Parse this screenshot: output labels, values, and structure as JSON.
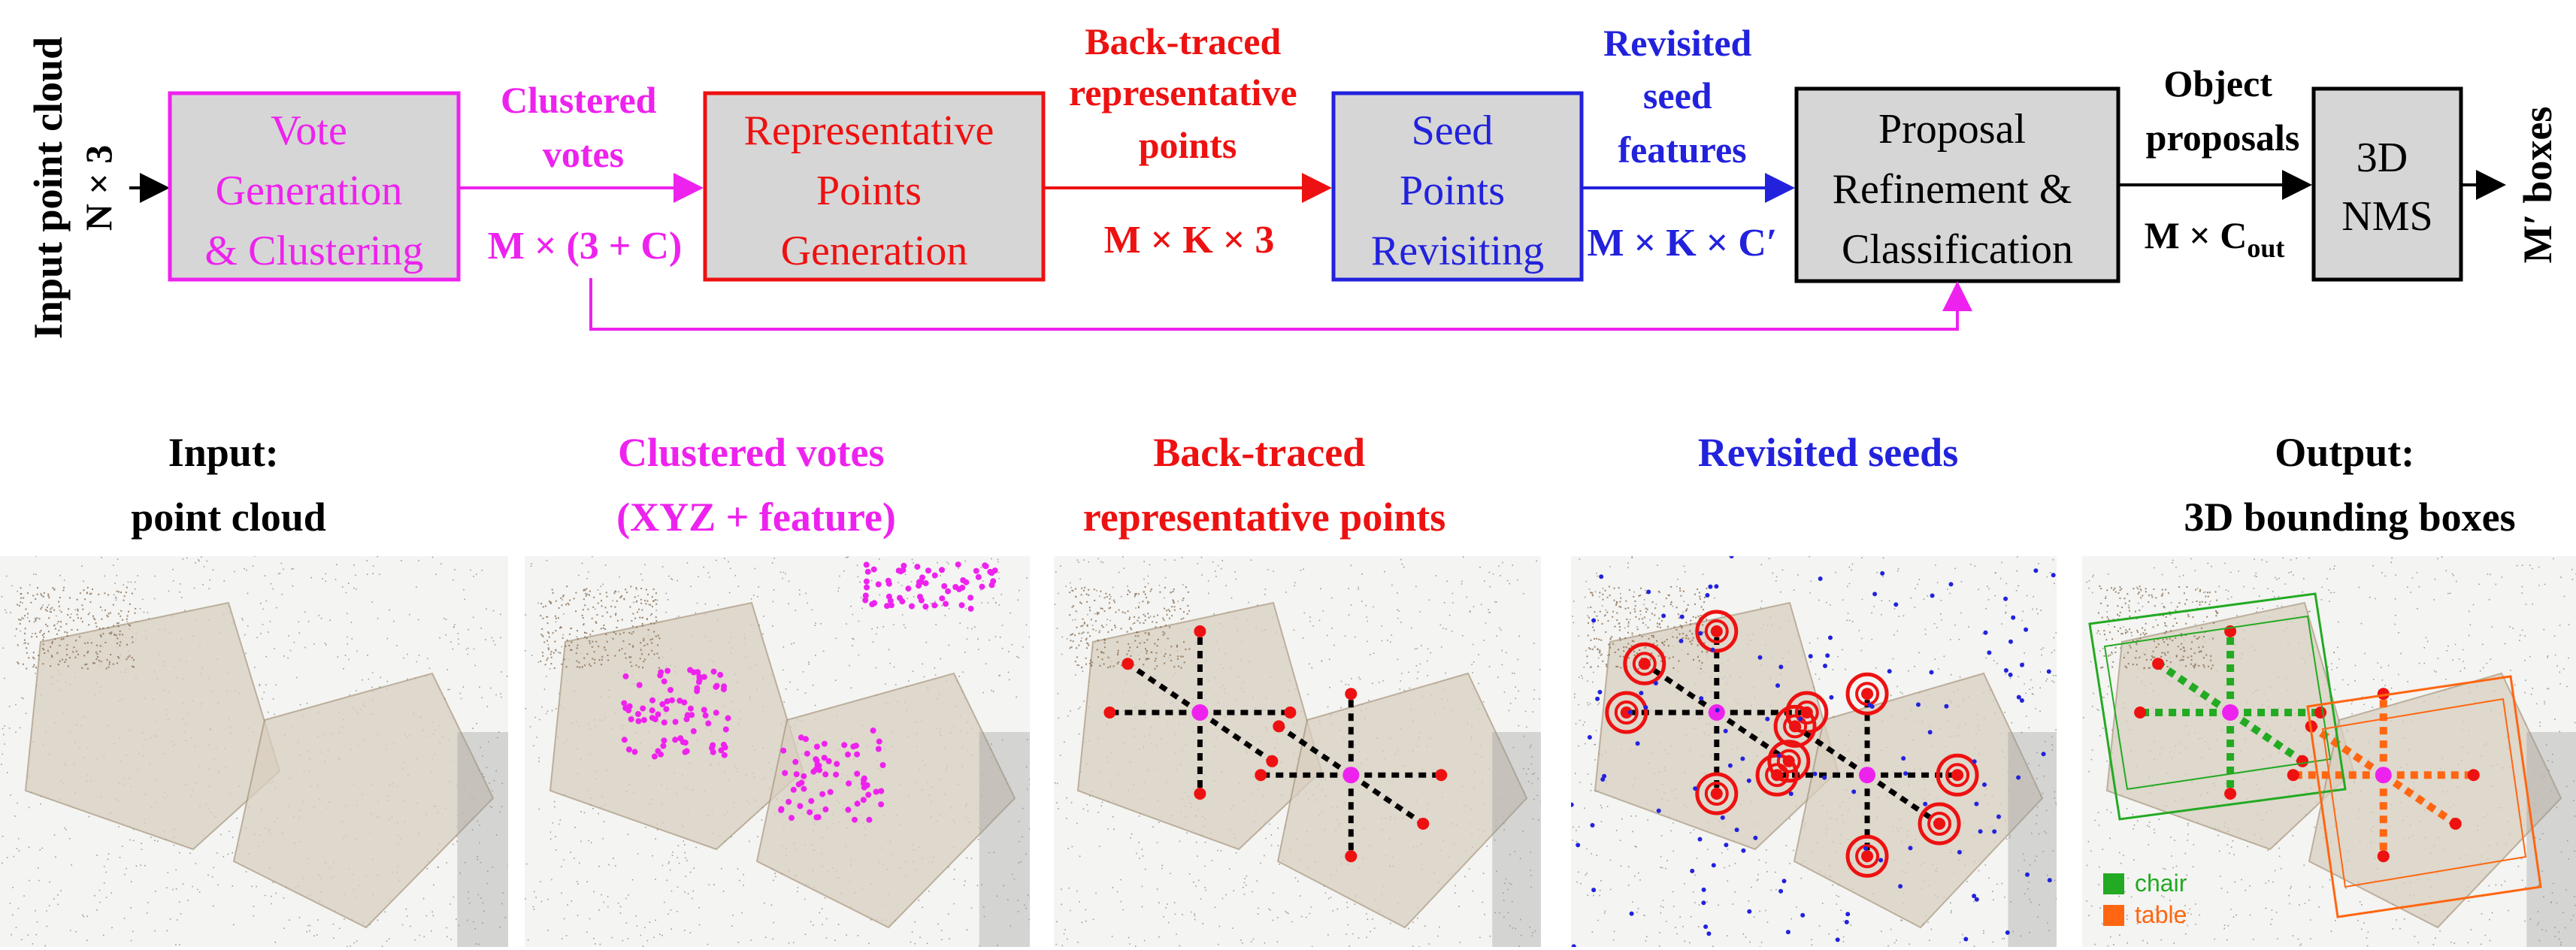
{
  "colors": {
    "magenta": "#ee22ee",
    "red": "#ee1111",
    "blue": "#2222dd",
    "black": "#000000",
    "box_fill": "#d6d6d6",
    "chair": "#22aa22",
    "table": "#ff6611"
  },
  "pipeline": {
    "input_label": "Input point cloud",
    "input_dims": "N × 3",
    "output_label": "M′ boxes",
    "boxes": [
      {
        "id": "vote-generation-clustering",
        "lines": [
          "Vote",
          "Generation",
          "& Clustering"
        ]
      },
      {
        "id": "representative-points-generation",
        "lines": [
          "Representative",
          "Points",
          "Generation"
        ]
      },
      {
        "id": "seed-points-revisiting",
        "lines": [
          "Seed",
          "Points",
          "Revisiting"
        ]
      },
      {
        "id": "proposal-refinement-classification",
        "lines": [
          "Proposal",
          "Refinement &",
          "Classification"
        ]
      },
      {
        "id": "3d-nms",
        "lines": [
          "3D",
          "NMS"
        ]
      }
    ],
    "edges": [
      {
        "id": "clustered-votes",
        "lines": [
          "Clustered",
          "votes"
        ],
        "dims": "M × (3 + C)"
      },
      {
        "id": "back-traced-points",
        "lines": [
          "Back-traced",
          "representative",
          "points"
        ],
        "dims": "M × K × 3"
      },
      {
        "id": "revisited-seed-features",
        "lines": [
          "Revisited",
          "seed",
          "features"
        ],
        "dims": "M × K × C′"
      },
      {
        "id": "object-proposals",
        "lines": [
          "Object",
          "proposals"
        ],
        "dims": "M × C",
        "dims_sub": "out"
      }
    ]
  },
  "panels": [
    {
      "id": "input",
      "lines": [
        "Input:",
        "point cloud"
      ]
    },
    {
      "id": "clustered-votes",
      "lines": [
        "Clustered votes",
        "(XYZ + feature)"
      ]
    },
    {
      "id": "back-traced",
      "lines": [
        "Back-traced",
        "representative points"
      ]
    },
    {
      "id": "revisited-seeds",
      "lines": [
        "Revisited seeds"
      ]
    },
    {
      "id": "output",
      "lines": [
        "Output:",
        "3D bounding boxes"
      ]
    }
  ],
  "legend": [
    {
      "label": "chair",
      "color": "#22aa22"
    },
    {
      "label": "table",
      "color": "#ff6611"
    }
  ]
}
